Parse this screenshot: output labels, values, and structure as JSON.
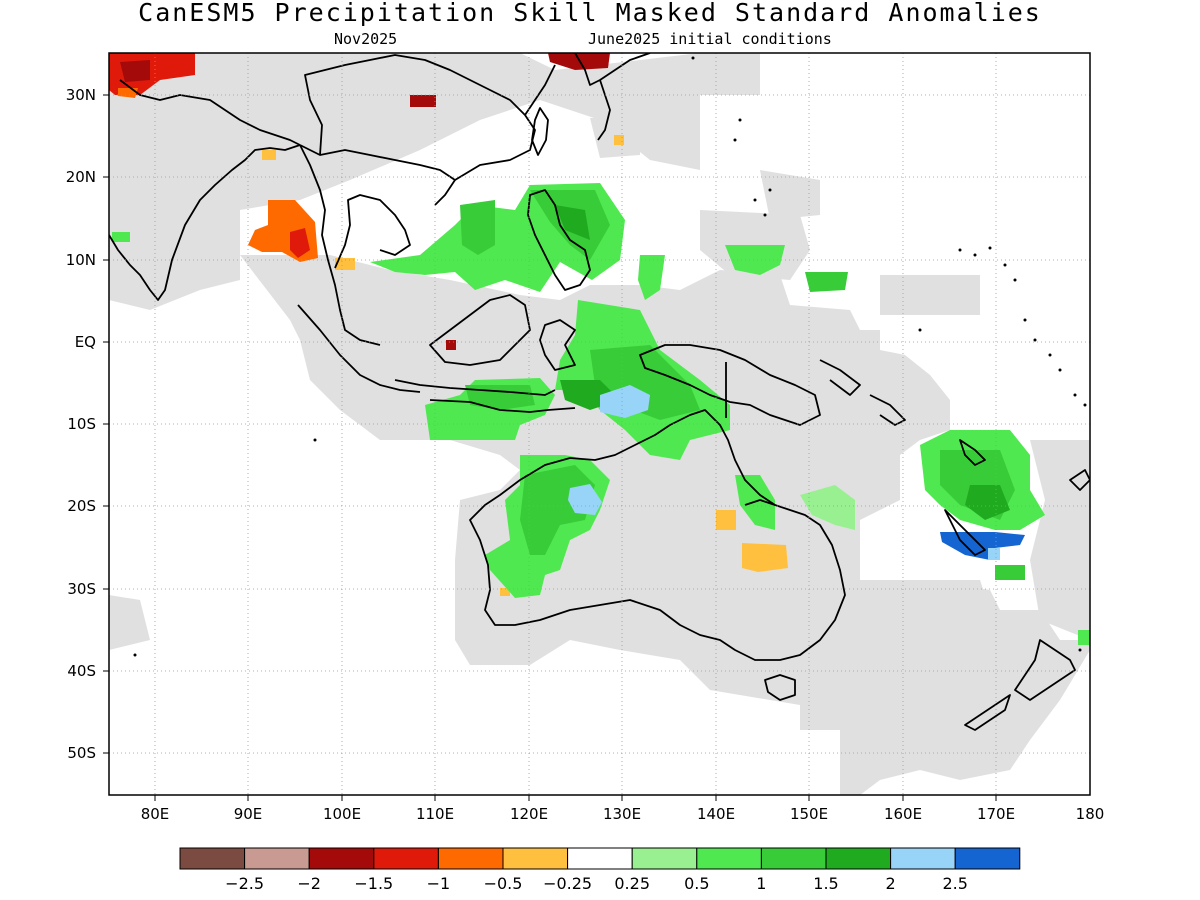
{
  "title": "CanESM5 Precipitation Skill Masked Standard Anomalies",
  "subtitle_left": "Nov2025",
  "subtitle_right": "June2025 initial conditions",
  "lat_labels": [
    "30N",
    "20N",
    "10N",
    "EQ",
    "10S",
    "20S",
    "30S",
    "40S",
    "50S"
  ],
  "lon_labels": [
    "80E",
    "90E",
    "100E",
    "110E",
    "120E",
    "130E",
    "140E",
    "150E",
    "160E",
    "170E",
    "180"
  ],
  "colorbar": {
    "colors": [
      "#7b4a40",
      "#c99a91",
      "#a40a0a",
      "#df1a0a",
      "#ff6a00",
      "#ffc040",
      "#ffffff",
      "#98f090",
      "#50e850",
      "#38cc38",
      "#20aa20",
      "#98d4f8",
      "#1464d2"
    ],
    "labels": [
      "-2.5",
      "-2",
      "-1.5",
      "-1",
      "-0.5",
      "-0.25",
      "0.25",
      "0.5",
      "1",
      "1.5",
      "2",
      "2.5"
    ]
  },
  "colors": {
    "mask_gray": "#e0e0e0",
    "grid": "#999999"
  }
}
